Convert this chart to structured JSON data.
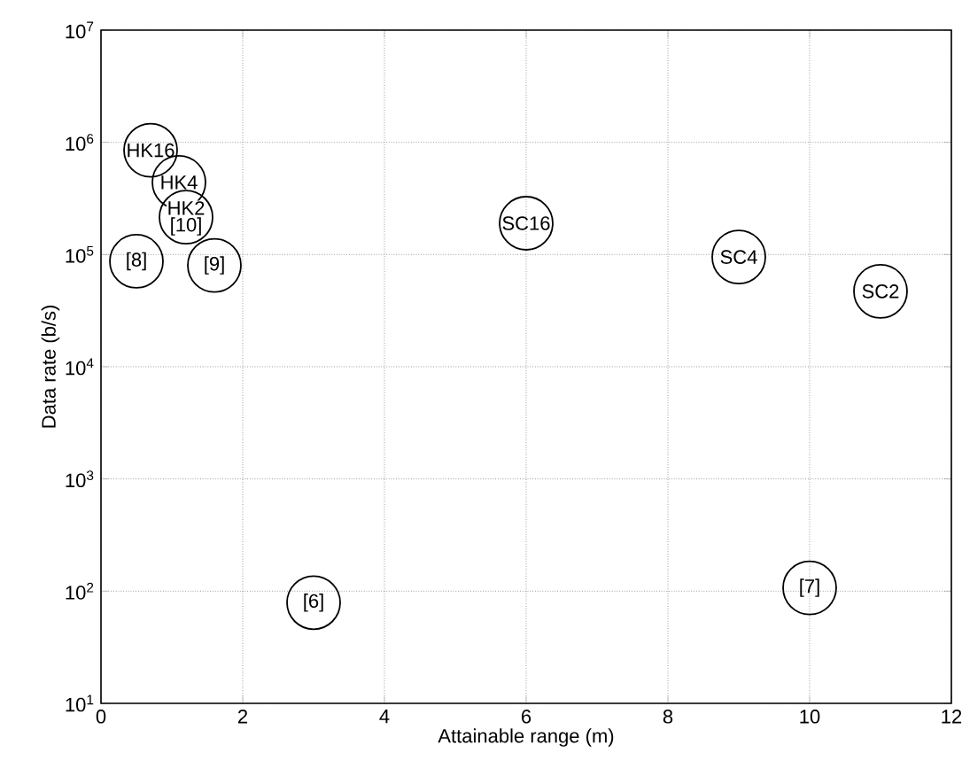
{
  "chart_data": {
    "type": "scatter",
    "xlabel": "Attainable range (m)",
    "ylabel": "Data rate (b/s)",
    "series": [
      {
        "color": "#000000",
        "x": [
          0.7,
          1.1,
          1.2,
          0.5,
          1.6,
          6.0,
          9.0,
          11.0,
          3.0,
          10.0
        ],
        "values": [
          850000,
          440000,
          215000,
          87000,
          80000,
          190000,
          95000,
          47000,
          79,
          107
        ]
      }
    ],
    "xlim": [
      0,
      12
    ],
    "xticks": [
      0,
      2,
      4,
      6,
      8,
      10,
      12
    ],
    "ylim": [
      10,
      10000000
    ],
    "yticks": [
      {
        "value": 10,
        "label": "10$^{1}$"
      },
      {
        "value": 100,
        "label": "10$^{2}$"
      },
      {
        "value": 1000,
        "label": "10$^{3}$"
      },
      {
        "value": 10000,
        "label": "10$^{4}$"
      },
      {
        "value": 100000,
        "label": "10$^{5}$"
      },
      {
        "value": 1000000,
        "label": "10$^{6}$"
      },
      {
        "value": 10000000,
        "label": "10$^{7}$"
      }
    ],
    "log": "y",
    "grid": true,
    "marker": "circle",
    "annotations": [
      {
        "text": "HK16",
        "x": 0.7,
        "y": 850000
      },
      {
        "text": "HK4",
        "x": 1.1,
        "y": 440000
      },
      {
        "text": "HK2",
        "x": 1.2,
        "y": 215000
      },
      {
        "text": "[10]",
        "x": 1.2,
        "y": 215000
      },
      {
        "text": "[8]",
        "x": 0.5,
        "y": 87000
      },
      {
        "text": "[9]",
        "x": 1.6,
        "y": 80000
      },
      {
        "text": "SC16",
        "x": 6.0,
        "y": 190000
      },
      {
        "text": "SC4",
        "x": 9.0,
        "y": 95000
      },
      {
        "text": "SC2",
        "x": 11.0,
        "y": 47000
      },
      {
        "text": "[6]",
        "x": 3.0,
        "y": 79
      },
      {
        "text": "[7]",
        "x": 10.0,
        "y": 107
      }
    ]
  }
}
